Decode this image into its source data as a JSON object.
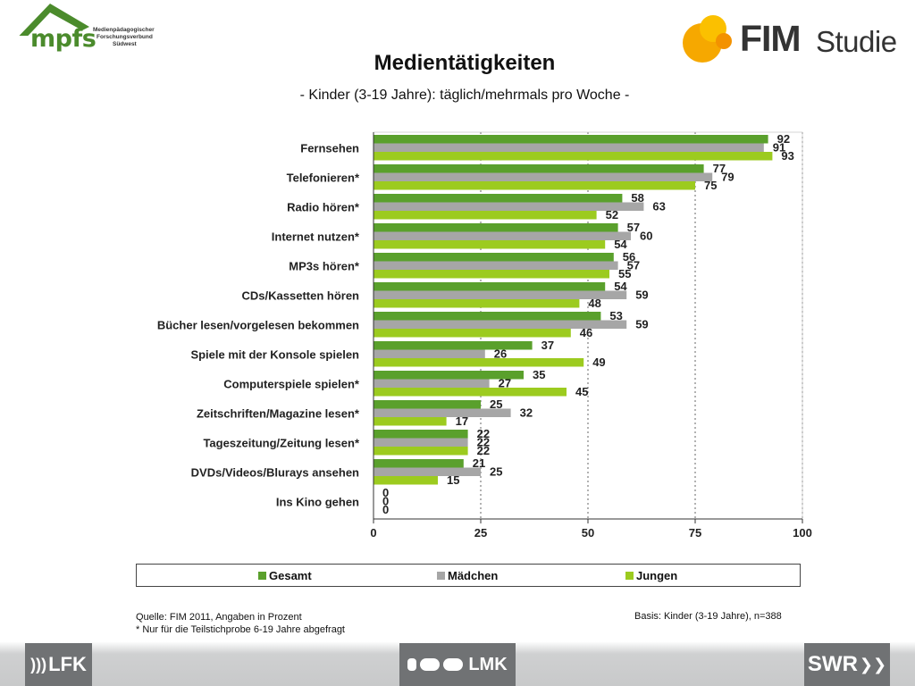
{
  "header": {
    "mpfs_logo": "mpfs",
    "mpfs_line1": "Medienpädagogischer",
    "mpfs_line2": "Forschungsverbund",
    "mpfs_line3": "Südwest",
    "fim_logo_bold": "FIM",
    "fim_logo_light": "Studie",
    "title": "Medientätigkeiten",
    "subtitle": "- Kinder (3-19 Jahre): täglich/mehrmals pro Woche -"
  },
  "colors": {
    "gesamt": "#5aa02c",
    "maedchen": "#a6a6a6",
    "jungen": "#9ccb1f",
    "logo_green": "#4b8b2c",
    "fim_orange": "#f6a800",
    "bottom_badge": "#707274"
  },
  "chart_data": {
    "type": "bar",
    "orientation": "horizontal",
    "categories": [
      "Fernsehen",
      "Telefonieren*",
      "Radio hören*",
      "Internet nutzen*",
      "MP3s hören*",
      "CDs/Kassetten hören",
      "Bücher lesen/vorgelesen bekommen",
      "Spiele mit der Konsole spielen",
      "Computerspiele spielen*",
      "Zeitschriften/Magazine lesen*",
      "Tageszeitung/Zeitung lesen*",
      "DVDs/Videos/Blurays ansehen",
      "Ins Kino gehen"
    ],
    "series": [
      {
        "name": "Gesamt",
        "values": [
          92,
          77,
          58,
          57,
          56,
          54,
          53,
          37,
          35,
          25,
          22,
          21,
          0
        ]
      },
      {
        "name": "Mädchen",
        "values": [
          91,
          79,
          63,
          60,
          57,
          59,
          59,
          26,
          27,
          32,
          22,
          25,
          0
        ]
      },
      {
        "name": "Jungen",
        "values": [
          93,
          75,
          52,
          54,
          55,
          48,
          46,
          49,
          45,
          17,
          22,
          15,
          0
        ]
      }
    ],
    "xlim": [
      0,
      100
    ],
    "xticks": [
      0,
      25,
      50,
      75,
      100
    ],
    "grid": "vertical dashed",
    "legend": "bottom"
  },
  "footer": {
    "source": "Quelle: FIM 2011, Angaben in Prozent",
    "note": "* Nur für die Teilstichprobe 6-19 Jahre abgefragt",
    "basis": "Basis: Kinder (3-19 Jahre), n=388"
  },
  "logos": {
    "lfk": "LFK",
    "lmk": "LMK",
    "swr": "SWR"
  }
}
